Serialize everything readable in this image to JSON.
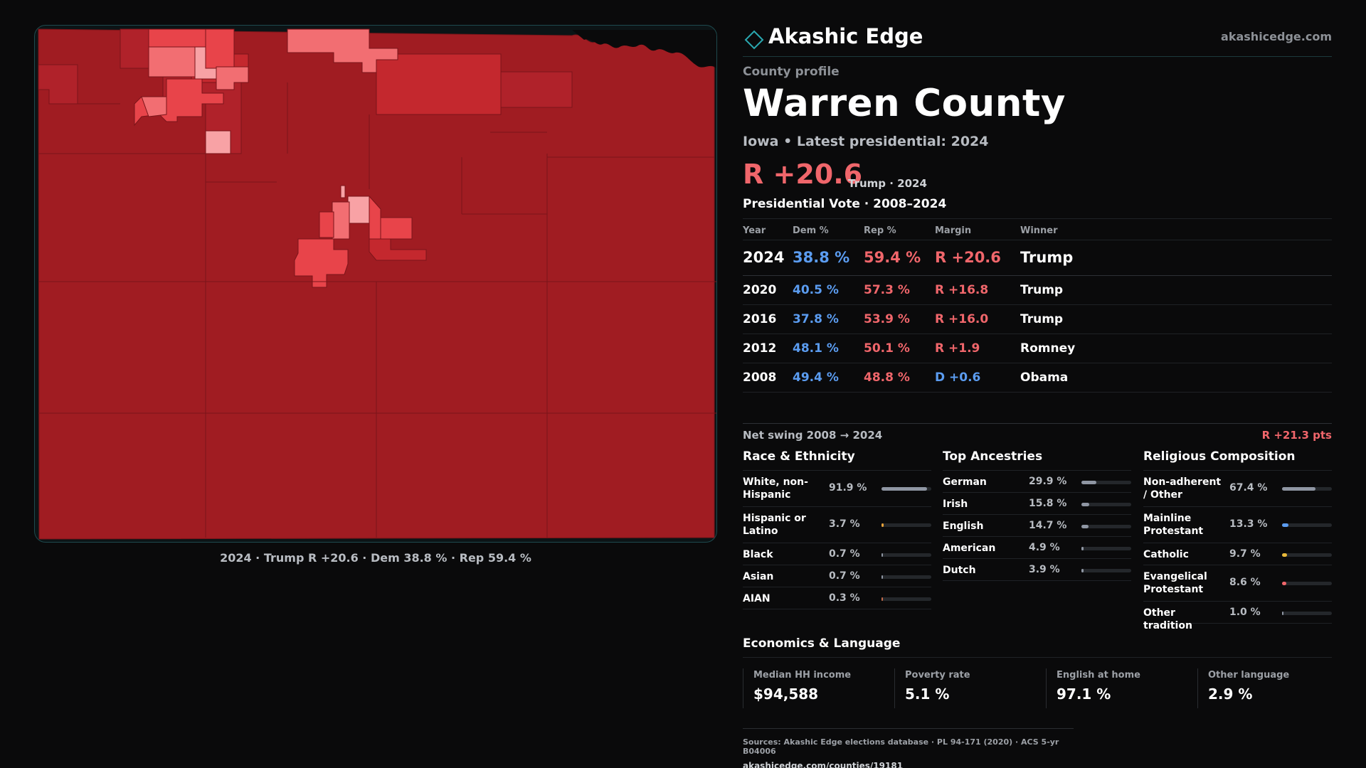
{
  "brand": {
    "name": "Akashic Edge",
    "url": "akashicedge.com"
  },
  "profile": {
    "kicker": "County profile",
    "title": "Warren County",
    "subtitle": "Iowa • Latest presidential: 2024",
    "margin": "R +20.6",
    "margin_note": "Trump · 2024"
  },
  "map": {
    "caption": "2024 · Trump R +20.6 · Dem 38.8 % · Rep 59.4 %",
    "colors": {
      "base": "#a01c22",
      "mid": "#c4282e",
      "light": "#e8444a",
      "lighter": "#f26e72",
      "lightest": "#f8a2a5",
      "outline": "#7a1419"
    }
  },
  "vote": {
    "title": "Presidential Vote · 2008–2024",
    "headers": {
      "year": "Year",
      "dem": "Dem %",
      "rep": "Rep %",
      "margin": "Margin",
      "winner": "Winner"
    },
    "rows": [
      {
        "year": "2024",
        "dem": "38.8 %",
        "rep": "59.4 %",
        "margin": "R +20.6",
        "winner": "Trump"
      },
      {
        "year": "2020",
        "dem": "40.5 %",
        "rep": "57.3 %",
        "margin": "R +16.8",
        "winner": "Trump"
      },
      {
        "year": "2016",
        "dem": "37.8 %",
        "rep": "53.9 %",
        "margin": "R +16.0",
        "winner": "Trump"
      },
      {
        "year": "2012",
        "dem": "48.1 %",
        "rep": "50.1 %",
        "margin": "R +1.9",
        "winner": "Romney"
      },
      {
        "year": "2008",
        "dem": "49.4 %",
        "rep": "48.8 %",
        "margin": "D +0.6",
        "winner": "Obama"
      }
    ],
    "swing_label": "Net swing 2008 → 2024",
    "swing_value": "R +21.3 pts"
  },
  "race": {
    "title": "Race & Ethnicity",
    "items": [
      {
        "label": "White, non-Hispanic",
        "value": "91.9 %",
        "pct": 91.9,
        "color": "#8f96a3"
      },
      {
        "label": "Hispanic or Latino",
        "value": "3.7 %",
        "pct": 3.7,
        "color": "#e8a33a"
      },
      {
        "label": "Black",
        "value": "0.7 %",
        "pct": 0.7,
        "color": "#8f96a3"
      },
      {
        "label": "Asian",
        "value": "0.7 %",
        "pct": 0.7,
        "color": "#8f96a3"
      },
      {
        "label": "AIAN",
        "value": "0.3 %",
        "pct": 0.3,
        "color": "#c26a4a"
      }
    ]
  },
  "ancestry": {
    "title": "Top Ancestries",
    "items": [
      {
        "label": "German",
        "value": "29.9 %",
        "pct": 29.9,
        "color": "#8f96a3"
      },
      {
        "label": "Irish",
        "value": "15.8 %",
        "pct": 15.8,
        "color": "#8f96a3"
      },
      {
        "label": "English",
        "value": "14.7 %",
        "pct": 14.7,
        "color": "#8f96a3"
      },
      {
        "label": "American",
        "value": "4.9 %",
        "pct": 4.9,
        "color": "#8f96a3"
      },
      {
        "label": "Dutch",
        "value": "3.9 %",
        "pct": 3.9,
        "color": "#8f96a3"
      }
    ]
  },
  "religion": {
    "title": "Religious Composition",
    "items": [
      {
        "label": "Non-adherent / Other",
        "value": "67.4 %",
        "pct": 67.4,
        "color": "#8f96a3"
      },
      {
        "label": "Mainline Protestant",
        "value": "13.3 %",
        "pct": 13.3,
        "color": "#5b9cf0"
      },
      {
        "label": "Catholic",
        "value": "9.7 %",
        "pct": 9.7,
        "color": "#e8b93a"
      },
      {
        "label": "Evangelical Protestant",
        "value": "8.6 %",
        "pct": 8.6,
        "color": "#f0666b"
      },
      {
        "label": "Other tradition",
        "value": "1.0 %",
        "pct": 1.0,
        "color": "#8f96a3"
      }
    ]
  },
  "economics": {
    "title": "Economics & Language",
    "items": [
      {
        "label": "Median HH income",
        "value": "$94,588"
      },
      {
        "label": "Poverty rate",
        "value": "5.1 %"
      },
      {
        "label": "English at home",
        "value": "97.1 %"
      },
      {
        "label": "Other language",
        "value": "2.9 %"
      }
    ]
  },
  "sources": {
    "line": "Sources: Akashic Edge elections database · PL 94-171 (2020) · ACS 5-yr B04006",
    "url": "akashicedge.com/counties/19181"
  }
}
